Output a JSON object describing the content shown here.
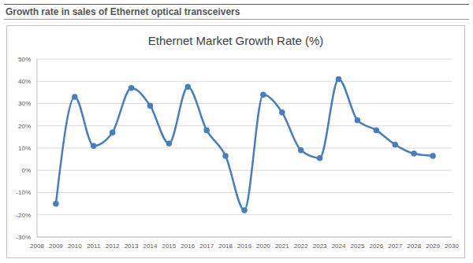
{
  "header": "Growth rate in sales of Ethernet optical transceivers",
  "chart_data": {
    "type": "line",
    "title": "Ethernet Market Growth Rate (%)",
    "x": [
      2009,
      2010,
      2011,
      2012,
      2013,
      2014,
      2015,
      2016,
      2017,
      2018,
      2019,
      2020,
      2021,
      2022,
      2023,
      2024,
      2025,
      2026,
      2027,
      2028,
      2029
    ],
    "values": [
      -15,
      33,
      11,
      17,
      37,
      29,
      12,
      37.5,
      18,
      6.5,
      -18,
      34,
      26,
      9,
      5.5,
      41,
      22.5,
      18,
      11.5,
      7.5,
      6.5
    ],
    "color": "#4a7ebb",
    "marker": "circle",
    "line_style": "smooth",
    "xlim": [
      2008,
      2030
    ],
    "xticks": [
      2008,
      2009,
      2010,
      2011,
      2012,
      2013,
      2014,
      2015,
      2016,
      2017,
      2018,
      2019,
      2020,
      2021,
      2022,
      2023,
      2024,
      2025,
      2026,
      2027,
      2028,
      2029,
      2030
    ],
    "ylim": [
      -30,
      50
    ],
    "yticks": [
      {
        "value": -30,
        "label": "-30%"
      },
      {
        "value": -20,
        "label": "-20%"
      },
      {
        "value": -10,
        "label": "-10%"
      },
      {
        "value": 0,
        "label": "0%"
      },
      {
        "value": 10,
        "label": "10%"
      },
      {
        "value": 20,
        "label": "20%"
      },
      {
        "value": 30,
        "label": "30%"
      },
      {
        "value": 40,
        "label": "40%"
      },
      {
        "value": 50,
        "label": "50%"
      }
    ],
    "grid": true
  }
}
